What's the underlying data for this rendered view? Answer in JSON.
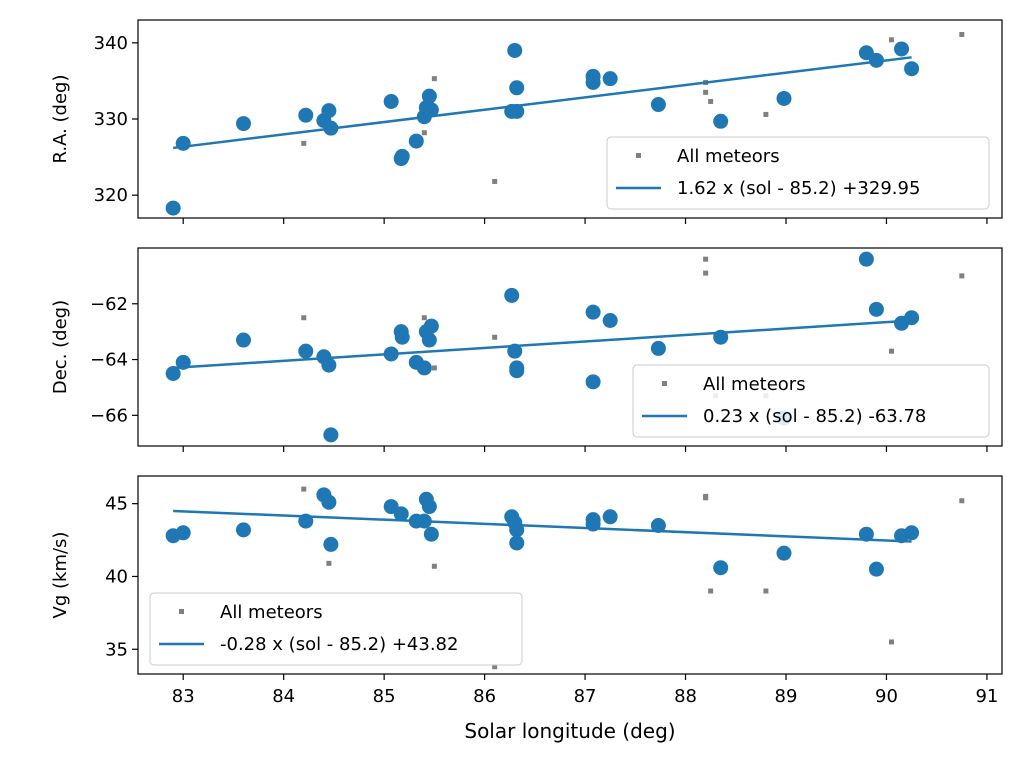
{
  "figure": {
    "xlabel": "Solar longitude (deg)"
  },
  "chart_data": [
    {
      "type": "scatter",
      "ylabel": "R.A. (deg)",
      "xlim": [
        82.55,
        91.15
      ],
      "ylim": [
        317,
        343
      ],
      "xticks": [
        83,
        84,
        85,
        86,
        87,
        88,
        89,
        90,
        91
      ],
      "yticks": [
        320,
        330,
        340
      ],
      "legend_position": "lower-right",
      "series": [
        {
          "name": "All meteors",
          "kind": "small-square",
          "color": "#808080",
          "points": [
            [
              84.2,
              326.8
            ],
            [
              84.45,
              330.5
            ],
            [
              85.4,
              328.2
            ],
            [
              85.5,
              335.3
            ],
            [
              86.1,
              321.8
            ],
            [
              88.2,
              333.5
            ],
            [
              88.25,
              332.3
            ],
            [
              88.2,
              334.8
            ],
            [
              88.8,
              330.6
            ],
            [
              90.05,
              340.4
            ],
            [
              90.75,
              341.1
            ]
          ]
        },
        {
          "name": "",
          "kind": "large-circle",
          "color": "#1f77b4",
          "points": [
            [
              82.9,
              318.3
            ],
            [
              83.0,
              326.8
            ],
            [
              83.6,
              329.4
            ],
            [
              84.22,
              330.5
            ],
            [
              84.4,
              329.8
            ],
            [
              84.45,
              331.1
            ],
            [
              84.47,
              328.8
            ],
            [
              85.07,
              332.3
            ],
            [
              85.17,
              324.8
            ],
            [
              85.18,
              325.1
            ],
            [
              85.32,
              327.1
            ],
            [
              85.4,
              330.3
            ],
            [
              85.42,
              331.5
            ],
            [
              85.45,
              333.0
            ],
            [
              85.47,
              331.2
            ],
            [
              86.27,
              331.0
            ],
            [
              86.3,
              339.0
            ],
            [
              86.32,
              331.0
            ],
            [
              86.32,
              334.1
            ],
            [
              87.08,
              334.8
            ],
            [
              87.08,
              335.6
            ],
            [
              87.25,
              335.3
            ],
            [
              87.73,
              331.9
            ],
            [
              88.35,
              329.7
            ],
            [
              88.98,
              332.7
            ],
            [
              89.8,
              338.7
            ],
            [
              89.9,
              337.7
            ],
            [
              90.15,
              339.2
            ],
            [
              90.25,
              336.6
            ]
          ]
        },
        {
          "name": "1.62 x (sol - 85.2) +329.95",
          "kind": "line",
          "color": "#1f77b4",
          "points": [
            [
              82.9,
              326.2
            ],
            [
              90.25,
              338.1
            ]
          ]
        }
      ]
    },
    {
      "type": "scatter",
      "ylabel": "Dec. (deg)",
      "xlim": [
        82.55,
        91.15
      ],
      "ylim": [
        -67.1,
        -60.0
      ],
      "xticks": [
        83,
        84,
        85,
        86,
        87,
        88,
        89,
        90,
        91
      ],
      "yticks": [
        -62,
        -64,
        -66
      ],
      "legend_position": "lower-right",
      "series": [
        {
          "name": "All meteors",
          "kind": "small-square",
          "color": "#808080",
          "points": [
            [
              84.2,
              -62.5
            ],
            [
              85.4,
              -62.5
            ],
            [
              85.5,
              -64.3
            ],
            [
              86.1,
              -63.2
            ],
            [
              88.2,
              -60.4
            ],
            [
              88.2,
              -60.9
            ],
            [
              88.3,
              -65.3
            ],
            [
              88.8,
              -65.3
            ],
            [
              90.05,
              -63.7
            ],
            [
              90.75,
              -61.0
            ]
          ]
        },
        {
          "name": "",
          "kind": "large-circle",
          "color": "#1f77b4",
          "points": [
            [
              82.9,
              -64.5
            ],
            [
              83.0,
              -64.1
            ],
            [
              83.6,
              -63.3
            ],
            [
              84.22,
              -63.7
            ],
            [
              84.4,
              -63.9
            ],
            [
              84.45,
              -64.2
            ],
            [
              84.47,
              -66.7
            ],
            [
              85.07,
              -63.8
            ],
            [
              85.17,
              -63.0
            ],
            [
              85.18,
              -63.2
            ],
            [
              85.32,
              -64.1
            ],
            [
              85.4,
              -64.3
            ],
            [
              85.42,
              -63.0
            ],
            [
              85.45,
              -63.3
            ],
            [
              85.47,
              -62.8
            ],
            [
              86.27,
              -61.7
            ],
            [
              86.3,
              -63.7
            ],
            [
              86.32,
              -64.3
            ],
            [
              86.32,
              -64.4
            ],
            [
              87.08,
              -62.3
            ],
            [
              87.08,
              -64.8
            ],
            [
              87.25,
              -62.6
            ],
            [
              87.73,
              -63.6
            ],
            [
              88.35,
              -63.2
            ],
            [
              88.98,
              -66.1
            ],
            [
              89.8,
              -60.4
            ],
            [
              89.9,
              -62.2
            ],
            [
              90.15,
              -62.7
            ],
            [
              90.25,
              -62.5
            ]
          ]
        },
        {
          "name": "0.23 x (sol - 85.2) -63.78",
          "kind": "line",
          "color": "#1f77b4",
          "points": [
            [
              82.9,
              -64.3
            ],
            [
              90.25,
              -62.6
            ]
          ]
        }
      ]
    },
    {
      "type": "scatter",
      "ylabel": "Vg (km/s)",
      "xlim": [
        82.55,
        91.15
      ],
      "ylim": [
        33.3,
        46.9
      ],
      "xticks": [
        83,
        84,
        85,
        86,
        87,
        88,
        89,
        90,
        91
      ],
      "yticks": [
        35,
        40,
        45
      ],
      "xticklabels_visible": true,
      "legend_position": "lower-left",
      "series": [
        {
          "name": "All meteors",
          "kind": "small-square",
          "color": "#808080",
          "points": [
            [
              84.2,
              46.0
            ],
            [
              84.45,
              40.9
            ],
            [
              85.5,
              40.7
            ],
            [
              86.1,
              33.8
            ],
            [
              88.2,
              45.4
            ],
            [
              88.2,
              45.5
            ],
            [
              88.25,
              39.0
            ],
            [
              88.8,
              39.0
            ],
            [
              90.05,
              35.5
            ],
            [
              90.75,
              45.2
            ]
          ]
        },
        {
          "name": "",
          "kind": "large-circle",
          "color": "#1f77b4",
          "points": [
            [
              82.9,
              42.8
            ],
            [
              83.0,
              43.0
            ],
            [
              83.6,
              43.2
            ],
            [
              84.22,
              43.8
            ],
            [
              84.4,
              45.6
            ],
            [
              84.45,
              45.1
            ],
            [
              84.47,
              42.2
            ],
            [
              85.07,
              44.8
            ],
            [
              85.17,
              44.3
            ],
            [
              85.32,
              43.8
            ],
            [
              85.4,
              43.8
            ],
            [
              85.42,
              45.3
            ],
            [
              85.45,
              44.8
            ],
            [
              85.47,
              42.9
            ],
            [
              86.27,
              44.1
            ],
            [
              86.3,
              43.7
            ],
            [
              86.32,
              43.2
            ],
            [
              86.32,
              42.3
            ],
            [
              87.08,
              43.9
            ],
            [
              87.08,
              43.6
            ],
            [
              87.25,
              44.1
            ],
            [
              87.73,
              43.5
            ],
            [
              88.35,
              40.6
            ],
            [
              88.98,
              41.6
            ],
            [
              89.8,
              42.9
            ],
            [
              89.9,
              40.5
            ],
            [
              90.15,
              42.8
            ],
            [
              90.25,
              43.0
            ]
          ]
        },
        {
          "name": "-0.28 x (sol - 85.2) +43.82",
          "kind": "line",
          "color": "#1f77b4",
          "points": [
            [
              82.9,
              44.5
            ],
            [
              90.25,
              42.4
            ]
          ]
        }
      ]
    }
  ]
}
